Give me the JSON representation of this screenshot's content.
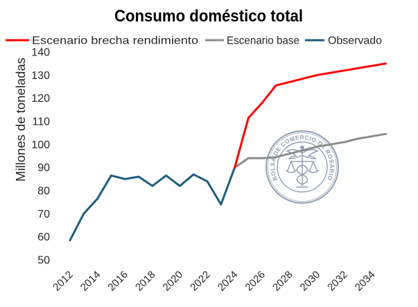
{
  "chart_data": {
    "type": "line",
    "title": "Consumo doméstico total",
    "ylabel": "Millones de toneladas",
    "ylim": [
      50,
      140
    ],
    "yticks": [
      50,
      60,
      70,
      80,
      90,
      100,
      110,
      120,
      130,
      140
    ],
    "xlim": [
      2012,
      2035
    ],
    "xticks": [
      2012,
      2014,
      2016,
      2018,
      2020,
      2022,
      2024,
      2026,
      2028,
      2030,
      2032,
      2034
    ],
    "grid": false,
    "legend": "top",
    "series": [
      {
        "name": "Escenario brecha rendimiento",
        "color": "#ff0000",
        "x": [
          2024,
          2025,
          2026,
          2027,
          2028,
          2029,
          2030,
          2031,
          2032,
          2033,
          2034,
          2035
        ],
        "y": [
          90,
          111.5,
          118,
          125.5,
          127,
          128.5,
          130,
          131,
          132,
          133,
          134,
          135
        ]
      },
      {
        "name": "Escenario base",
        "color": "#8c8c8c",
        "x": [
          2024,
          2025,
          2026,
          2027,
          2028,
          2029,
          2030,
          2031,
          2032,
          2033,
          2034,
          2035
        ],
        "y": [
          90,
          94,
          94,
          94.5,
          96,
          97.5,
          99,
          100,
          101,
          102.5,
          103.5,
          104.5
        ]
      },
      {
        "name": "Observado",
        "color": "#1f5c7f",
        "x": [
          2012,
          2013,
          2014,
          2015,
          2016,
          2017,
          2018,
          2019,
          2020,
          2021,
          2022,
          2023,
          2024
        ],
        "y": [
          58.5,
          70,
          76.5,
          86.5,
          85,
          86,
          82,
          86.5,
          82,
          87,
          84,
          74,
          90
        ]
      }
    ]
  },
  "watermark": {
    "text": "BOLSA DE COMERCIO DE ROSARIO",
    "color": "#7f8fa6"
  }
}
